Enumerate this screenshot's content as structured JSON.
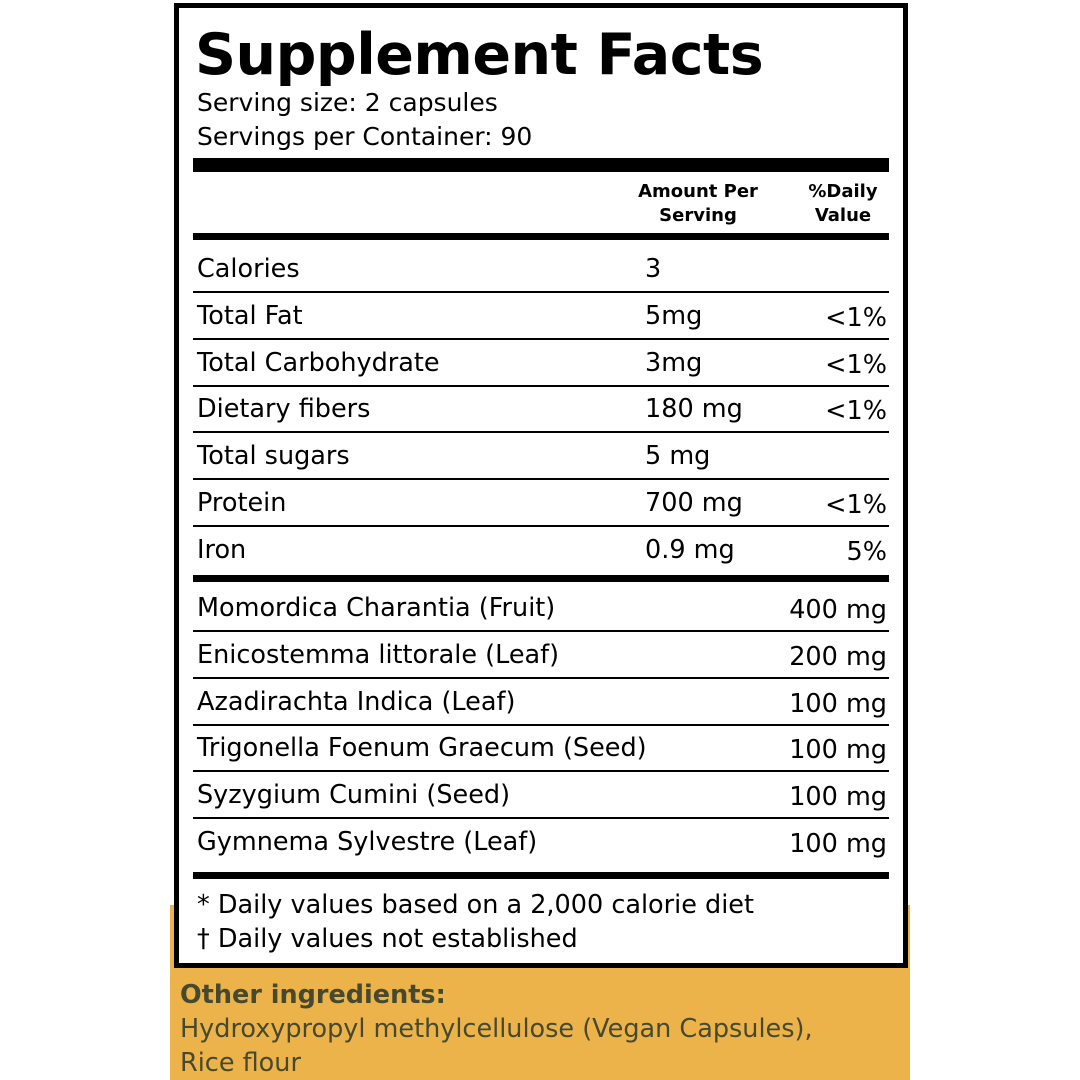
{
  "title": "Supplement Facts",
  "serving_size": "Serving size: 2 capsules",
  "servings_per_container": "Servings per Container: 90",
  "headers": {
    "amount": [
      "Amount Per",
      "Serving"
    ],
    "daily_value": [
      "%Daily",
      "Value"
    ]
  },
  "nutrients": [
    {
      "name": "Calories",
      "amount": "3",
      "dv": ""
    },
    {
      "name": "Total Fat",
      "amount": "5mg",
      "dv": "<1%"
    },
    {
      "name": "Total Carbohydrate",
      "amount": "3mg",
      "dv": "<1%"
    },
    {
      "name": "Dietary fibers",
      "amount": "180 mg",
      "dv": "<1%"
    },
    {
      "name": "Total sugars",
      "amount": "5 mg",
      "dv": ""
    },
    {
      "name": "Protein",
      "amount": "700 mg",
      "dv": "<1%"
    },
    {
      "name": "Iron",
      "amount": "0.9 mg",
      "dv": "5%"
    }
  ],
  "ingredients": [
    {
      "name": "Momordica Charantia (Fruit)",
      "amount": "400 mg"
    },
    {
      "name": "Enicostemma littorale (Leaf)",
      "amount": "200 mg"
    },
    {
      "name": "Azadirachta Indica (Leaf)",
      "amount": "100 mg"
    },
    {
      "name": "Trigonella Foenum Graecum (Seed)",
      "amount": "100 mg"
    },
    {
      "name": "Syzygium Cumini (Seed)",
      "amount": "100 mg"
    },
    {
      "name": "Gymnema Sylvestre (Leaf)",
      "amount": "100 mg"
    }
  ],
  "footnotes": [
    "* Daily values based on a 2,000 calorie diet",
    "† Daily values not established"
  ],
  "other_ingredients": {
    "label": "Other ingredients:",
    "lines": [
      "Hydroxypropyl methylcellulose (Vegan Capsules),",
      "Rice flour"
    ]
  },
  "colors": {
    "accent": "#edb34b",
    "other_text": "#47492f"
  }
}
